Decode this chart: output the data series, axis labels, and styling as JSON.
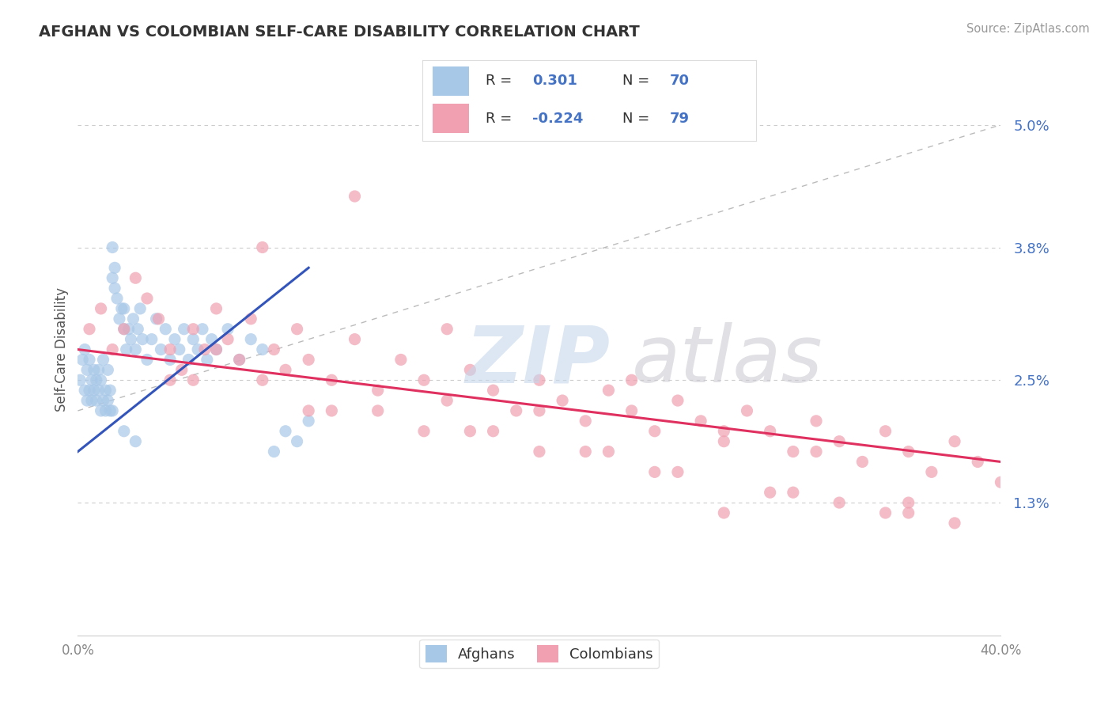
{
  "title": "AFGHAN VS COLOMBIAN SELF-CARE DISABILITY CORRELATION CHART",
  "source": "Source: ZipAtlas.com",
  "ylabel": "Self-Care Disability",
  "yticks": [
    0.0,
    0.013,
    0.025,
    0.038,
    0.05
  ],
  "ytick_labels": [
    "",
    "1.3%",
    "2.5%",
    "3.8%",
    "5.0%"
  ],
  "xlim": [
    0.0,
    0.4
  ],
  "ylim": [
    0.0,
    0.056
  ],
  "afghan_color": "#A8C8E8",
  "colombian_color": "#F0A0B0",
  "afghan_trend_color": "#3355BB",
  "colombian_trend_color": "#E03060",
  "background_color": "#FFFFFF",
  "grid_color": "#CCCCCC",
  "afghan_scatter_x": [
    0.001,
    0.002,
    0.003,
    0.003,
    0.004,
    0.004,
    0.005,
    0.005,
    0.006,
    0.006,
    0.007,
    0.007,
    0.008,
    0.008,
    0.009,
    0.009,
    0.01,
    0.01,
    0.011,
    0.011,
    0.012,
    0.012,
    0.013,
    0.013,
    0.014,
    0.014,
    0.015,
    0.015,
    0.016,
    0.016,
    0.017,
    0.018,
    0.019,
    0.02,
    0.02,
    0.021,
    0.022,
    0.023,
    0.024,
    0.025,
    0.026,
    0.027,
    0.028,
    0.03,
    0.032,
    0.034,
    0.036,
    0.038,
    0.04,
    0.042,
    0.044,
    0.046,
    0.048,
    0.05,
    0.052,
    0.054,
    0.056,
    0.058,
    0.06,
    0.065,
    0.07,
    0.075,
    0.08,
    0.085,
    0.09,
    0.095,
    0.1,
    0.015,
    0.02,
    0.025
  ],
  "afghan_scatter_y": [
    0.025,
    0.027,
    0.024,
    0.028,
    0.023,
    0.026,
    0.024,
    0.027,
    0.023,
    0.025,
    0.024,
    0.026,
    0.023,
    0.025,
    0.024,
    0.026,
    0.022,
    0.025,
    0.023,
    0.027,
    0.022,
    0.024,
    0.023,
    0.026,
    0.022,
    0.024,
    0.035,
    0.038,
    0.036,
    0.034,
    0.033,
    0.031,
    0.032,
    0.03,
    0.032,
    0.028,
    0.03,
    0.029,
    0.031,
    0.028,
    0.03,
    0.032,
    0.029,
    0.027,
    0.029,
    0.031,
    0.028,
    0.03,
    0.027,
    0.029,
    0.028,
    0.03,
    0.027,
    0.029,
    0.028,
    0.03,
    0.027,
    0.029,
    0.028,
    0.03,
    0.027,
    0.029,
    0.028,
    0.018,
    0.02,
    0.019,
    0.021,
    0.022,
    0.02,
    0.019
  ],
  "colombian_scatter_x": [
    0.005,
    0.01,
    0.015,
    0.02,
    0.025,
    0.03,
    0.035,
    0.04,
    0.045,
    0.05,
    0.055,
    0.06,
    0.065,
    0.07,
    0.075,
    0.08,
    0.085,
    0.09,
    0.095,
    0.1,
    0.11,
    0.12,
    0.13,
    0.14,
    0.15,
    0.16,
    0.17,
    0.18,
    0.19,
    0.2,
    0.21,
    0.22,
    0.23,
    0.24,
    0.25,
    0.26,
    0.27,
    0.28,
    0.29,
    0.3,
    0.31,
    0.32,
    0.33,
    0.34,
    0.35,
    0.36,
    0.37,
    0.38,
    0.39,
    0.4,
    0.08,
    0.12,
    0.16,
    0.2,
    0.24,
    0.28,
    0.32,
    0.36,
    0.04,
    0.1,
    0.15,
    0.2,
    0.25,
    0.3,
    0.35,
    0.06,
    0.11,
    0.17,
    0.22,
    0.26,
    0.31,
    0.36,
    0.13,
    0.18,
    0.23,
    0.28,
    0.33,
    0.38,
    0.05
  ],
  "colombian_scatter_y": [
    0.03,
    0.032,
    0.028,
    0.03,
    0.035,
    0.033,
    0.031,
    0.028,
    0.026,
    0.03,
    0.028,
    0.032,
    0.029,
    0.027,
    0.031,
    0.025,
    0.028,
    0.026,
    0.03,
    0.027,
    0.025,
    0.029,
    0.024,
    0.027,
    0.025,
    0.023,
    0.026,
    0.024,
    0.022,
    0.025,
    0.023,
    0.021,
    0.024,
    0.022,
    0.02,
    0.023,
    0.021,
    0.019,
    0.022,
    0.02,
    0.018,
    0.021,
    0.019,
    0.017,
    0.02,
    0.018,
    0.016,
    0.019,
    0.017,
    0.015,
    0.038,
    0.043,
    0.03,
    0.022,
    0.025,
    0.02,
    0.018,
    0.013,
    0.025,
    0.022,
    0.02,
    0.018,
    0.016,
    0.014,
    0.012,
    0.028,
    0.022,
    0.02,
    0.018,
    0.016,
    0.014,
    0.012,
    0.022,
    0.02,
    0.018,
    0.012,
    0.013,
    0.011,
    0.025
  ]
}
